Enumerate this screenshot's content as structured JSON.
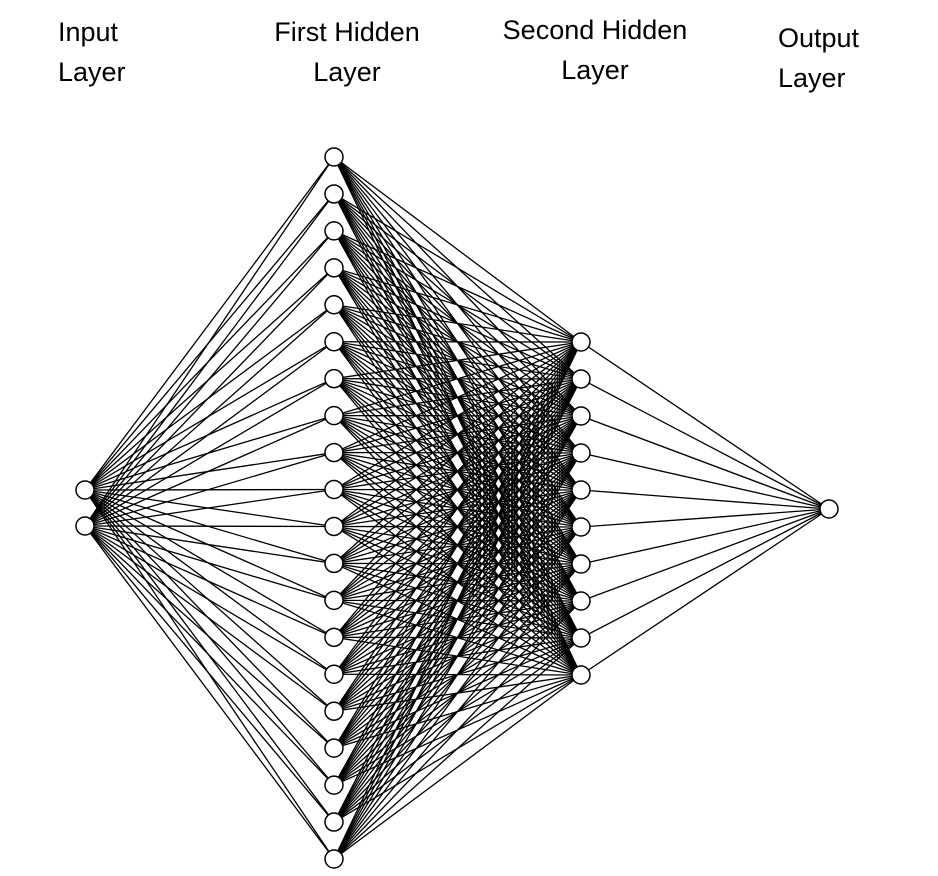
{
  "layers": [
    {
      "id": "input",
      "title_lines": [
        "Input",
        "Layer"
      ],
      "neurons": 2
    },
    {
      "id": "hidden1",
      "title_lines": [
        "First Hidden",
        "Layer"
      ],
      "neurons": 20
    },
    {
      "id": "hidden2",
      "title_lines": [
        "Second Hidden",
        "Layer"
      ],
      "neurons": 10
    },
    {
      "id": "output",
      "title_lines": [
        "Output",
        "Layer"
      ],
      "neurons": 1
    }
  ],
  "connectivity": "fully-connected",
  "colors": {
    "edge": "#000000",
    "neuron_fill": "#ffffff",
    "neuron_stroke": "#000000",
    "text": "#000000",
    "background": "#ffffff"
  }
}
